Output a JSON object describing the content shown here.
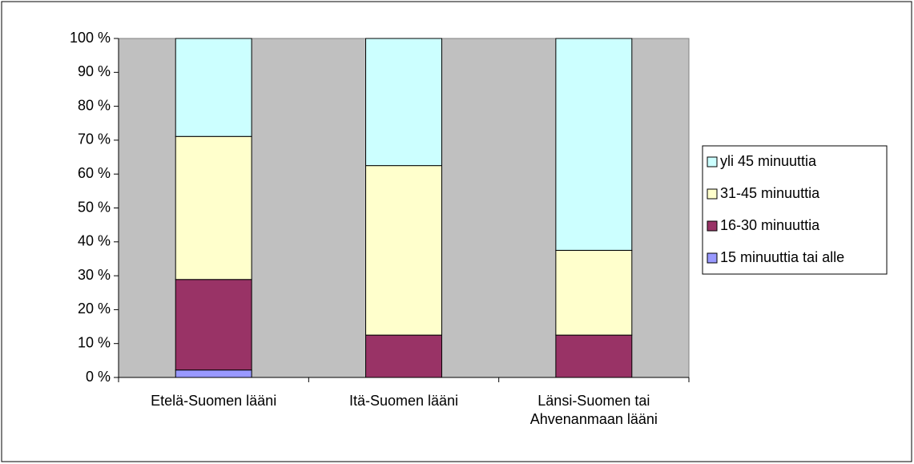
{
  "chart_data": {
    "type": "stacked_bar",
    "categories": [
      "Etelä-Suomen lääni",
      "Itä-Suomen lääni",
      "Länsi-Suomen tai Ahvenanmaan lääni"
    ],
    "series": [
      {
        "name": "15 minuuttia tai alle",
        "color": "#9999ff",
        "values": [
          2.2,
          0,
          0
        ]
      },
      {
        "name": "16-30 minuuttia",
        "color": "#993366",
        "values": [
          26.7,
          12.5,
          12.5
        ]
      },
      {
        "name": "31-45 minuuttia",
        "color": "#ffffcc",
        "values": [
          42.2,
          50,
          25
        ]
      },
      {
        "name": "yli 45 minuuttia",
        "color": "#ccffff",
        "values": [
          28.9,
          37.5,
          62.5
        ]
      }
    ],
    "ylim": [
      0,
      100
    ],
    "yticks": [
      {
        "value": 0,
        "label": "0 %"
      },
      {
        "value": 10,
        "label": "10 %"
      },
      {
        "value": 20,
        "label": "20 %"
      },
      {
        "value": 30,
        "label": "30 %"
      },
      {
        "value": 40,
        "label": "40 %"
      },
      {
        "value": 50,
        "label": "50 %"
      },
      {
        "value": 60,
        "label": "60 %"
      },
      {
        "value": 70,
        "label": "70 %"
      },
      {
        "value": 80,
        "label": "80 %"
      },
      {
        "value": 90,
        "label": "90 %"
      },
      {
        "value": 100,
        "label": "100 %"
      }
    ],
    "plot_background": "#c0c0c0",
    "legend": "right"
  }
}
